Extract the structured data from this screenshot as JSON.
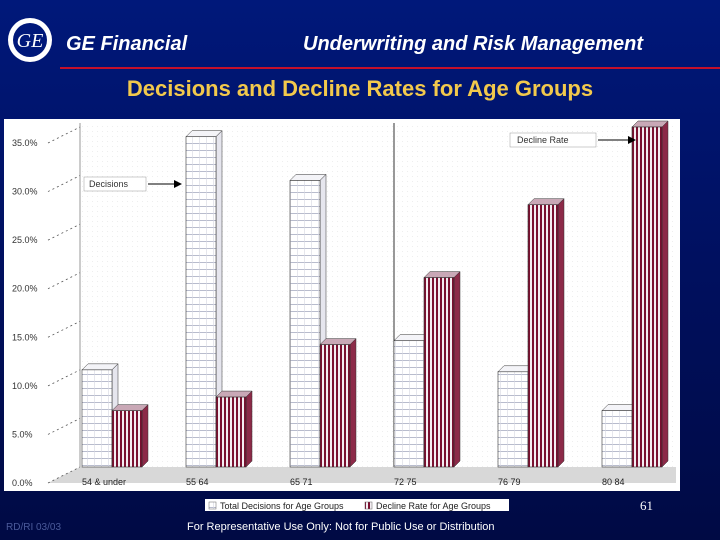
{
  "header": {
    "brand": "GE Financial",
    "section": "Underwriting and Risk Management",
    "logo_text": "GE"
  },
  "slide_title": "Decisions and Decline Rates for Age Groups",
  "page_number": "61",
  "footer": {
    "code": "RD/RI 03/03",
    "disclaimer": "For Representative Use Only: Not for Public Use or Distribution"
  },
  "colors": {
    "background": "#000f5c",
    "title": "#f2c94c",
    "rule": "#c4102b",
    "decline_stripe": "#7a1030"
  },
  "chart_data": {
    "type": "bar",
    "title": "Decisions and Decline Rates for Age Groups",
    "categories": [
      "54 & under",
      "55 64",
      "65 71",
      "72 75",
      "76 79",
      "80 84"
    ],
    "series": [
      {
        "name": "Total Decisions for Age Groups",
        "values": [
          10.0,
          34.0,
          29.5,
          13.0,
          9.8,
          5.8
        ]
      },
      {
        "name": "Decline Rate for Age Groups",
        "values": [
          5.8,
          7.2,
          12.6,
          19.5,
          27.0,
          35.0
        ]
      }
    ],
    "y_ticks": [
      "0.0%",
      "5.0%",
      "10.0%",
      "15.0%",
      "20.0%",
      "25.0%",
      "30.0%",
      "35.0%"
    ],
    "ylim": [
      0,
      35
    ],
    "annotations": [
      {
        "text": "Decisions",
        "series": "Total Decisions for Age Groups"
      },
      {
        "text": "Decline Rate",
        "series": "Decline Rate for Age Groups"
      }
    ],
    "legend_position": "bottom-right"
  }
}
